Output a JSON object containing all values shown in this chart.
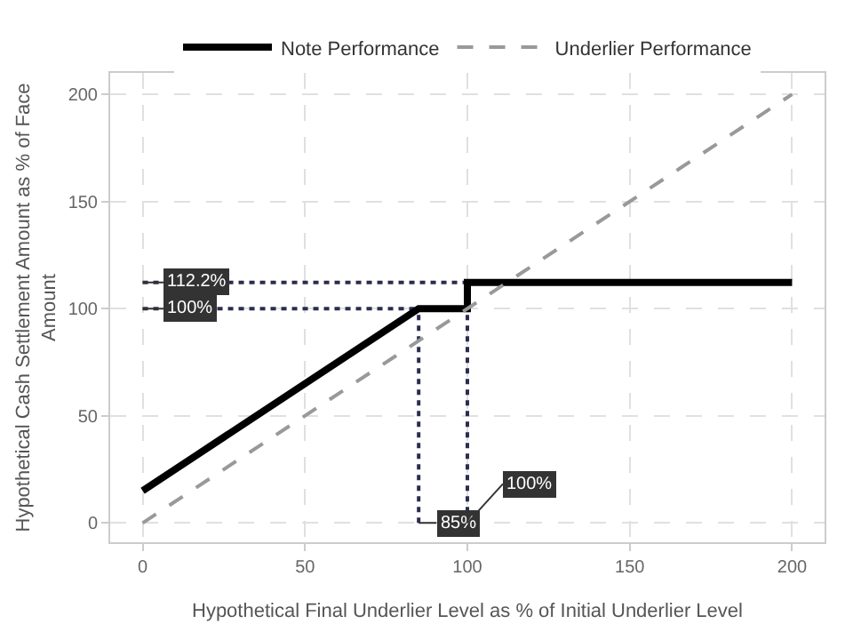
{
  "chart_data": {
    "type": "line",
    "xlabel": "Hypothetical Final Underlier Level as % of Initial Underlier Level",
    "ylabel": "Hypothetical Cash Settlement Amount as % of Face Amount",
    "xlim": [
      -10,
      210
    ],
    "ylim": [
      -9,
      210
    ],
    "xticks": [
      0,
      50,
      100,
      150,
      200
    ],
    "yticks": [
      0,
      50,
      100,
      150,
      200
    ],
    "grid": true,
    "legend": "top",
    "marker": "none",
    "series": [
      {
        "name": "Note Performance",
        "color": "#000000",
        "line_style": "solid",
        "x": [
          0,
          85,
          100,
          100,
          200
        ],
        "values": [
          15,
          100,
          100,
          112.2,
          112.2
        ]
      },
      {
        "name": "Underlier Performance",
        "color": "#999999",
        "line_style": "dashed",
        "x": [
          0,
          200
        ],
        "values": [
          0,
          200
        ]
      },
      {
        "color": "#2b2d4f",
        "line_style": "dotted",
        "x": [
          0,
          100
        ],
        "values": [
          112.2,
          112.2
        ]
      },
      {
        "color": "#2b2d4f",
        "line_style": "dotted",
        "x": [
          0,
          85
        ],
        "values": [
          100,
          100
        ]
      },
      {
        "color": "#2b2d4f",
        "line_style": "dotted",
        "x": [
          85,
          85
        ],
        "values": [
          0,
          100
        ]
      },
      {
        "color": "#2b2d4f",
        "line_style": "dotted",
        "x": [
          100,
          100
        ],
        "values": [
          0,
          112.2
        ]
      }
    ],
    "annotations": [
      {
        "text": "112.2%",
        "x": 0,
        "y": 112.2
      },
      {
        "text": "100%",
        "x": 0,
        "y": 100
      },
      {
        "text": "85%",
        "x": 85,
        "y": 0
      },
      {
        "text": "100%",
        "x": 100,
        "y": 0
      }
    ]
  }
}
